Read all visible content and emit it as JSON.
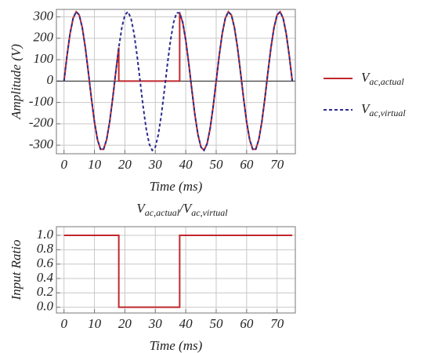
{
  "chart_data": [
    {
      "type": "line",
      "xlabel": "Time (ms)",
      "ylabel": "Amplitude (V)",
      "x": [
        0,
        1,
        2,
        3,
        4,
        5,
        6,
        7,
        8,
        9,
        10,
        11,
        12,
        13,
        14,
        15,
        16,
        17,
        18,
        18,
        19,
        20,
        21,
        22,
        23,
        24,
        25,
        26,
        27,
        28,
        29,
        30,
        31,
        32,
        33,
        34,
        35,
        36,
        37,
        38,
        38,
        39,
        40,
        41,
        42,
        43,
        44,
        45,
        46,
        47,
        48,
        49,
        50,
        51,
        52,
        53,
        54,
        55,
        56,
        57,
        58,
        59,
        60,
        61,
        62,
        63,
        64,
        65,
        66,
        67,
        68,
        69,
        70,
        71,
        72,
        73,
        74,
        75
      ],
      "series": [
        {
          "name": "Vac,actual",
          "color": "#c0282d",
          "style": "solid",
          "values": [
            0,
            120,
            223,
            294,
            324,
            309,
            250,
            157,
            41,
            -81,
            -191,
            -274,
            -319,
            -319,
            -274,
            -191,
            -81,
            41,
            157,
            0,
            0,
            0,
            0,
            0,
            0,
            0,
            0,
            0,
            0,
            0,
            0,
            0,
            0,
            0,
            0,
            0,
            0,
            0,
            0,
            0,
            319,
            274,
            191,
            81,
            -41,
            -157,
            -250,
            -309,
            -324,
            -294,
            -223,
            -120,
            0,
            120,
            223,
            294,
            324,
            309,
            250,
            157,
            41,
            -81,
            -191,
            -274,
            -319,
            -319,
            -274,
            -191,
            -81,
            41,
            157,
            250,
            309,
            324,
            294,
            223,
            120,
            0
          ]
        },
        {
          "name": "Vac,virtual",
          "color": "#2b2b8e",
          "style": "dashed",
          "values": [
            0,
            120,
            223,
            294,
            324,
            309,
            250,
            157,
            41,
            -81,
            -191,
            -274,
            -319,
            -319,
            -274,
            -191,
            -81,
            41,
            157,
            157,
            250,
            309,
            324,
            294,
            223,
            120,
            0,
            -120,
            -223,
            -294,
            -324,
            -309,
            -250,
            -157,
            -41,
            81,
            191,
            274,
            319,
            319,
            319,
            274,
            191,
            81,
            -41,
            -157,
            -250,
            -309,
            -324,
            -294,
            -223,
            -120,
            0,
            120,
            223,
            294,
            324,
            309,
            250,
            157,
            41,
            -81,
            -191,
            -274,
            -319,
            -319,
            -274,
            -191,
            -81,
            41,
            157,
            250,
            309,
            324,
            294,
            223,
            120,
            0
          ]
        }
      ],
      "xlim": [
        -2.5,
        76
      ],
      "xticks": [
        0,
        10,
        20,
        30,
        40,
        50,
        60,
        70
      ],
      "ylim": [
        -340,
        335
      ],
      "yticks": [
        -300,
        -200,
        -100,
        0,
        100,
        200,
        300
      ],
      "grid": true,
      "legend": "right"
    },
    {
      "type": "line",
      "title": "Vac,actual/Vac,virtual",
      "xlabel": "Time (ms)",
      "ylabel": "Input Ratio",
      "x": [
        0,
        18,
        18,
        38,
        38,
        75
      ],
      "values": [
        1,
        1,
        0,
        0,
        1,
        1
      ],
      "color": "#c0282d",
      "xlim": [
        -2.5,
        76
      ],
      "xticks": [
        0,
        10,
        20,
        30,
        40,
        50,
        60,
        70
      ],
      "ylim": [
        -0.08,
        1.12
      ],
      "yticks": [
        {
          "value": 0,
          "label": "0.0"
        },
        {
          "value": 0.2,
          "label": "0.2"
        },
        {
          "value": 0.4,
          "label": "0.4"
        },
        {
          "value": 0.6,
          "label": "0.6"
        },
        {
          "value": 0.8,
          "label": "0.8"
        },
        {
          "value": 1,
          "label": "1.0"
        }
      ],
      "grid": true
    }
  ]
}
